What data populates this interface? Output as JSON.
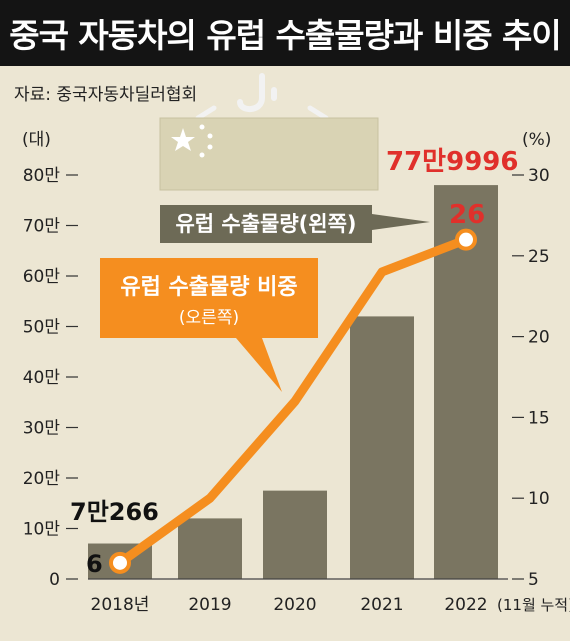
{
  "title": "중국 자동차의 유럽 수출물량과 비중 추이",
  "source": "자료: 중국자동차딜러협회",
  "colors": {
    "background": "#ece6d3",
    "bar": "#7a7561",
    "line": "#f58e1f",
    "title_bar": "#141414",
    "highlight_red": "#e0302b"
  },
  "icon": "china-flag-crate-icon",
  "chart_data": {
    "type": "bar+line",
    "categories": [
      "2018년",
      "2019",
      "2020",
      "2021",
      "2022"
    ],
    "x_suffix": "(11월 누적)",
    "series": [
      {
        "name": "유럽 수출물량",
        "axis": "left",
        "type": "bar",
        "values": [
          70266,
          120000,
          175000,
          520000,
          779996
        ],
        "label": "유럽 수출물량(왼쪽)"
      },
      {
        "name": "유럽 수출물량 비중",
        "axis": "right",
        "type": "line",
        "values": [
          6,
          10,
          16,
          24,
          26
        ],
        "label_main": "유럽 수출물량 비중",
        "label_sub": "(오른쪽)"
      }
    ],
    "left_axis": {
      "unit": "(대)",
      "range": [
        0,
        800000
      ],
      "ticks": [
        0,
        100000,
        200000,
        300000,
        400000,
        500000,
        600000,
        700000,
        800000
      ],
      "tick_labels": [
        "0",
        "10만",
        "20만",
        "30만",
        "40만",
        "50만",
        "60만",
        "70만",
        "80만"
      ]
    },
    "right_axis": {
      "unit": "(%)",
      "range": [
        5,
        30
      ],
      "ticks": [
        5,
        10,
        15,
        20,
        25,
        30
      ],
      "tick_labels": [
        "5",
        "10",
        "15",
        "20",
        "25",
        "30"
      ]
    },
    "annotations": {
      "first_bar": "7만266",
      "last_bar": "77만9996",
      "first_point": "6",
      "last_point": "26"
    }
  }
}
